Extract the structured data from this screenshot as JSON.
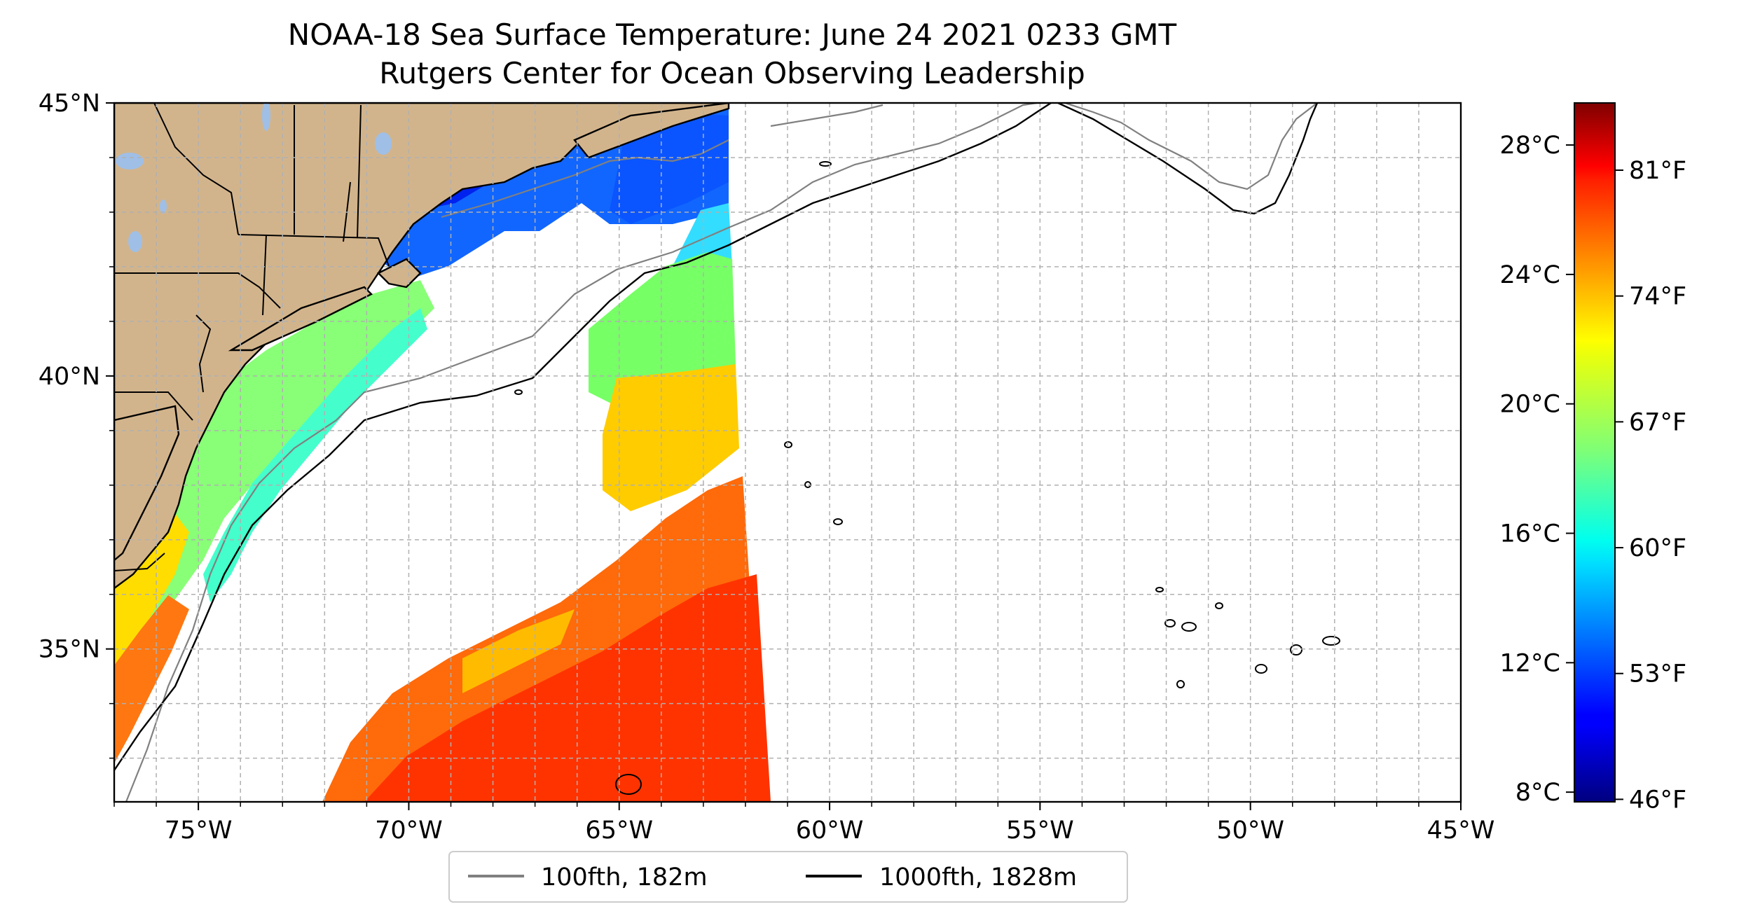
{
  "title": {
    "line1": "NOAA-18 Sea Surface Temperature: June 24 2021 0233 GMT",
    "line2": "Rutgers Center for Ocean Observing Leadership"
  },
  "map": {
    "lon_range": [
      -77,
      -45
    ],
    "lat_range": [
      32.2,
      45
    ],
    "lon_ticks": [
      {
        "value": -75,
        "label": "75°W"
      },
      {
        "value": -70,
        "label": "70°W"
      },
      {
        "value": -65,
        "label": "65°W"
      },
      {
        "value": -60,
        "label": "60°W"
      },
      {
        "value": -55,
        "label": "55°W"
      },
      {
        "value": -50,
        "label": "50°W"
      },
      {
        "value": -45,
        "label": "45°W"
      }
    ],
    "lat_ticks": [
      {
        "value": 45,
        "label": "45°N"
      },
      {
        "value": 40,
        "label": "40°N"
      },
      {
        "value": 35,
        "label": "35°N"
      }
    ],
    "grid": true,
    "land_color": "#d2b48c",
    "lake_color": "#9fbfe6",
    "no_data_color": "#ffffff"
  },
  "colorbar": {
    "celsius_range": [
      7.7,
      29.3
    ],
    "celsius_ticks": [
      {
        "value": 8,
        "label": "8°C"
      },
      {
        "value": 12,
        "label": "12°C"
      },
      {
        "value": 16,
        "label": "16°C"
      },
      {
        "value": 20,
        "label": "20°C"
      },
      {
        "value": 24,
        "label": "24°C"
      },
      {
        "value": 28,
        "label": "28°C"
      }
    ],
    "fahrenheit_ticks": [
      {
        "value": 46,
        "label": "46°F"
      },
      {
        "value": 53,
        "label": "53°F"
      },
      {
        "value": 60,
        "label": "60°F"
      },
      {
        "value": 67,
        "label": "67°F"
      },
      {
        "value": 74,
        "label": "74°F"
      },
      {
        "value": 81,
        "label": "81°F"
      }
    ],
    "colormap": "jet"
  },
  "legend": {
    "items": [
      {
        "label": "100fth, 182m",
        "color": "#808080"
      },
      {
        "label": "1000fth, 1828m",
        "color": "#000000"
      }
    ]
  }
}
